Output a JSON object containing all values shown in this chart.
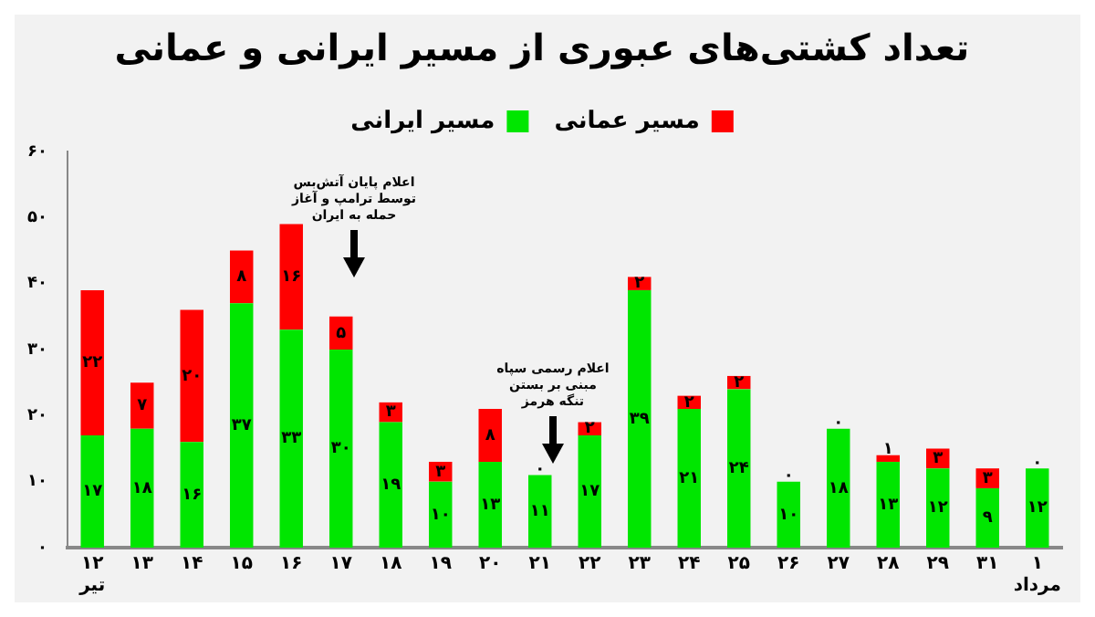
{
  "chart_data": {
    "type": "bar",
    "title": "تعداد کشتی‌های عبوری از مسیر ایرانی و عمانی",
    "categories": [
      "۱۲\nتیر",
      "۱۳",
      "۱۴",
      "۱۵",
      "۱۶",
      "۱۷",
      "۱۸",
      "۱۹",
      "۲۰",
      "۲۱",
      "۲۲",
      "۲۳",
      "۲۴",
      "۲۵",
      "۲۶",
      "۲۷",
      "۲۸",
      "۲۹",
      "۳۱",
      "۱\nمرداد"
    ],
    "stacked": true,
    "legend": "top",
    "grid": false,
    "ylim": [
      0,
      60
    ],
    "yticks": [
      {
        "value": 0,
        "label": "۰"
      },
      {
        "value": 10,
        "label": "۱۰"
      },
      {
        "value": 20,
        "label": "۲۰"
      },
      {
        "value": 30,
        "label": "۳۰"
      },
      {
        "value": 40,
        "label": "۴۰"
      },
      {
        "value": 50,
        "label": "۵۰"
      },
      {
        "value": 60,
        "label": "۶۰"
      }
    ],
    "series": [
      {
        "name": "مسیر ایرانی",
        "color": "#00e600",
        "values": [
          17,
          18,
          16,
          37,
          33,
          30,
          19,
          10,
          13,
          11,
          17,
          39,
          21,
          24,
          10,
          18,
          13,
          12,
          9,
          12
        ],
        "value_labels": [
          "۱۷",
          "۱۸",
          "۱۶",
          "۳۷",
          "۳۳",
          "۳۰",
          "۱۹",
          "۱۰",
          "۱۳",
          "۱۱",
          "۱۷",
          "۳۹",
          "۲۱",
          "۲۴",
          "۱۰",
          "۱۸",
          "۱۳",
          "۱۲",
          "۹",
          "۱۲"
        ]
      },
      {
        "name": "مسیر عمانی",
        "color": "#ff0000",
        "values": [
          22,
          7,
          20,
          8,
          16,
          5,
          3,
          3,
          8,
          0,
          2,
          2,
          2,
          2,
          0,
          0,
          1,
          3,
          3,
          0
        ],
        "value_labels": [
          "۲۲",
          "۷",
          "۲۰",
          "۸",
          "۱۶",
          "۵",
          "۳",
          "۳",
          "۸",
          "۰",
          "۲",
          "۲",
          "۲",
          "۲",
          "۰",
          "۰",
          "۱",
          "۳",
          "۳",
          "۰"
        ]
      }
    ],
    "annotations": [
      "اعلام پایان آتش‌بس\nتوسط ترامپ و آغاز\nحمله به ایران",
      "اعلام رسمی سپاه\nمبنی بر بستن\nتنگه هرمز"
    ]
  }
}
